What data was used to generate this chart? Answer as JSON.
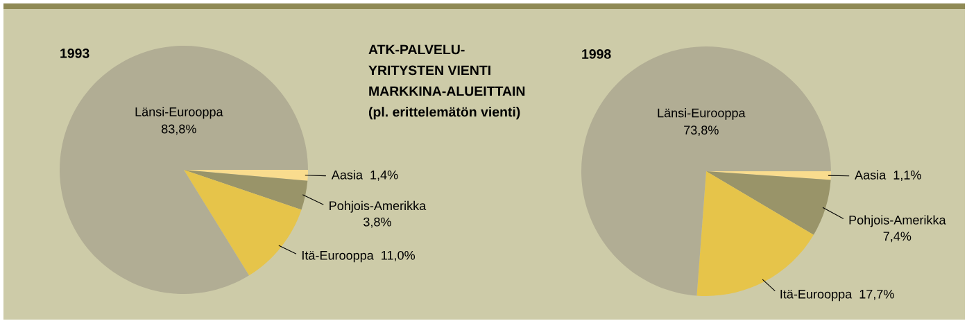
{
  "chart_data": [
    {
      "type": "pie",
      "title": "1993",
      "categories": [
        "Aasia",
        "Pohjois-Amerikka",
        "Itä-Eurooppa",
        "Länsi-Eurooppa"
      ],
      "values": [
        1.4,
        3.8,
        11.0,
        83.8
      ],
      "colors": [
        "#f9dc8e",
        "#999469",
        "#e6c44a",
        "#b1ad94"
      ],
      "value_labels": [
        "1,4%",
        "3,8%",
        "11,0%",
        "83,8%"
      ]
    },
    {
      "type": "other",
      "title": "ATK-PALVELU-\nYRITYSTEN VIENTI\nMARKKINA-ALUEITTAIN",
      "subtitle": "(pl. erittelemätön vienti)"
    },
    {
      "type": "pie",
      "title": "1998",
      "categories": [
        "Aasia",
        "Pohjois-Amerikka",
        "Itä-Eurooppa",
        "Länsi-Eurooppa"
      ],
      "values": [
        1.1,
        7.4,
        17.7,
        73.8
      ],
      "colors": [
        "#f9dc8e",
        "#999469",
        "#e6c44a",
        "#b1ad94"
      ],
      "value_labels": [
        "1,1%",
        "7,4%",
        "17,7%",
        "73,8%"
      ]
    }
  ]
}
